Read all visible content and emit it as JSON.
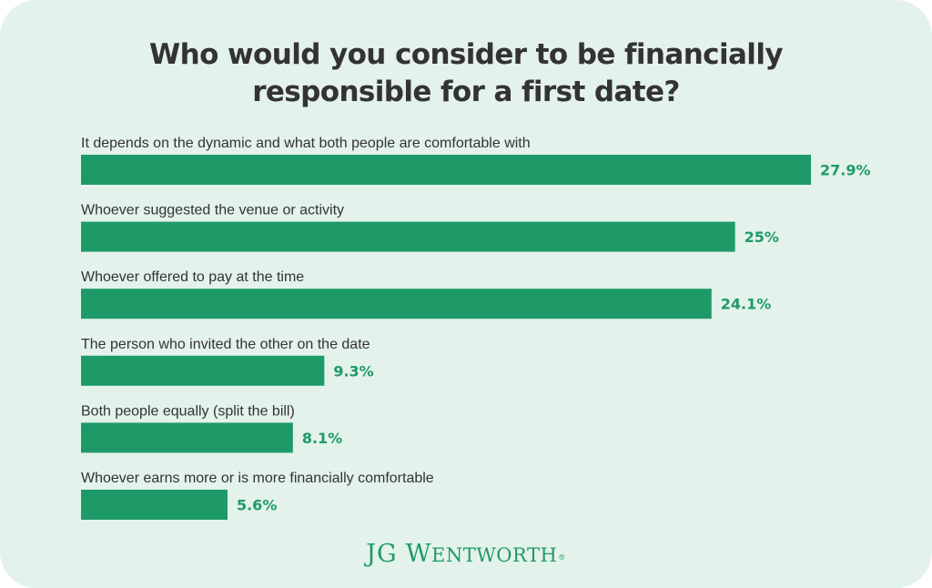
{
  "chart_data": {
    "type": "bar",
    "orientation": "horizontal",
    "title": "Who would you consider to be financially responsible for a first date?",
    "title_lines": [
      "Who would you consider to be financially",
      "responsible for a first date?"
    ],
    "categories": [
      "It depends on the dynamic and what both people are comfortable with",
      "Whoever suggested the venue or activity",
      "Whoever offered to pay at the time",
      "The person who invited the other on the date",
      "Both people equally (split the bill)",
      "Whoever earns more or is more financially comfortable"
    ],
    "values": [
      27.9,
      25,
      24.1,
      9.3,
      8.1,
      5.6
    ],
    "value_labels": [
      "27.9%",
      "25%",
      "24.1%",
      "9.3%",
      "8.1%",
      "5.6%"
    ],
    "xlim": [
      0,
      27.9
    ],
    "grid": false,
    "legend": "none"
  },
  "colors": {
    "background": "#e3f2ea",
    "bar": "#1e9a69",
    "value_text": "#1e9a69",
    "label_text": "#333333",
    "title_text": "#333333"
  },
  "logo": {
    "text": "JG WENTWORTH"
  }
}
